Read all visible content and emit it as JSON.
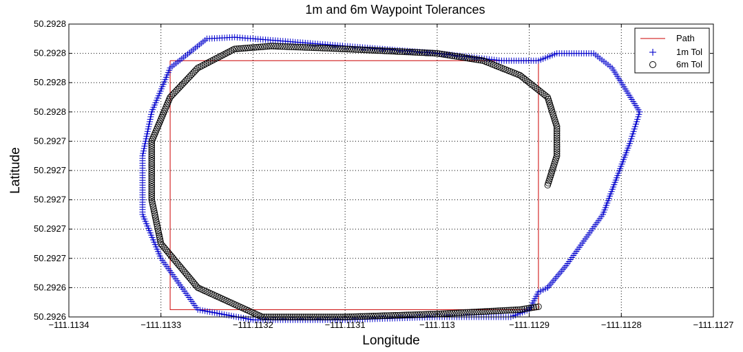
{
  "chart_data": {
    "type": "scatter",
    "title": "1m and 6m Waypoint Tolerances",
    "xlabel": "Longitude",
    "ylabel": "Latitude",
    "xlim": [
      -111.1134,
      -111.1127
    ],
    "ylim": [
      50.29262,
      50.29282
    ],
    "grid": true,
    "legend_position": "top-right",
    "x_ticks": [
      -111.1134,
      -111.1133,
      -111.1132,
      -111.1131,
      -111.113,
      -111.1129,
      -111.1128,
      -111.1127
    ],
    "x_tick_labels": [
      "−111.1134",
      "−111.1133",
      "−111.1132",
      "−111.1131",
      "−111.113",
      "−111.1129",
      "−111.1128",
      "−111.1127"
    ],
    "y_ticks": [
      50.29262,
      50.29264,
      50.29266,
      50.29268,
      50.2927,
      50.29272,
      50.29274,
      50.29276,
      50.29278,
      50.2928,
      50.29282
    ],
    "y_tick_labels": [
      "50.2926",
      "50.2926",
      "50.2927",
      "50.2927",
      "50.2927",
      "50.2927",
      "50.2927",
      "50.2928",
      "50.2928",
      "50.2928",
      "50.2928"
    ],
    "series": [
      {
        "name": "Path",
        "style": "line",
        "color": "#cc0000",
        "x": [
          -111.11329,
          -111.11289,
          -111.11289,
          -111.11329,
          -111.11329
        ],
        "y": [
          50.292795,
          50.292795,
          50.292625,
          50.292625,
          50.292795
        ]
      },
      {
        "name": "1m Tol",
        "style": "plus",
        "color": "#0000cc",
        "x": [
          -111.11288,
          -111.11286,
          -111.11282,
          -111.11279,
          -111.11278,
          -111.11281,
          -111.11283,
          -111.11287,
          -111.11289,
          -111.11293,
          -111.113,
          -111.1131,
          -111.1132,
          -111.11322,
          -111.11325,
          -111.11329,
          -111.11331,
          -111.11332,
          -111.11332,
          -111.1133,
          -111.11326,
          -111.1132,
          -111.1131,
          -111.113,
          -111.11292,
          -111.1129,
          -111.11289,
          -111.11288
        ],
        "y": [
          50.29264,
          50.292655,
          50.29269,
          50.29274,
          50.29276,
          50.29279,
          50.2928,
          50.2928,
          50.292795,
          50.292795,
          50.2928,
          50.292805,
          50.29281,
          50.292811,
          50.29281,
          50.29279,
          50.29276,
          50.29273,
          50.29269,
          50.29266,
          50.292625,
          50.292618,
          50.292618,
          50.29262,
          50.29262,
          50.292625,
          50.292637,
          50.29264
        ]
      },
      {
        "name": "6m Tol",
        "style": "circle",
        "color": "#000000",
        "x": [
          -111.11288,
          -111.11287,
          -111.11287,
          -111.11288,
          -111.11291,
          -111.11295,
          -111.113,
          -111.1131,
          -111.11318,
          -111.11322,
          -111.11326,
          -111.11329,
          -111.11331,
          -111.11331,
          -111.1133,
          -111.11326,
          -111.11319,
          -111.1131,
          -111.113,
          -111.11291,
          -111.11289
        ],
        "y": [
          50.29271,
          50.29273,
          50.29275,
          50.29277,
          50.292785,
          50.292795,
          50.2928,
          50.292803,
          50.292805,
          50.292803,
          50.29279,
          50.29277,
          50.29274,
          50.2927,
          50.29267,
          50.29264,
          50.29262,
          50.29262,
          50.292622,
          50.292625,
          50.292627
        ]
      }
    ]
  }
}
